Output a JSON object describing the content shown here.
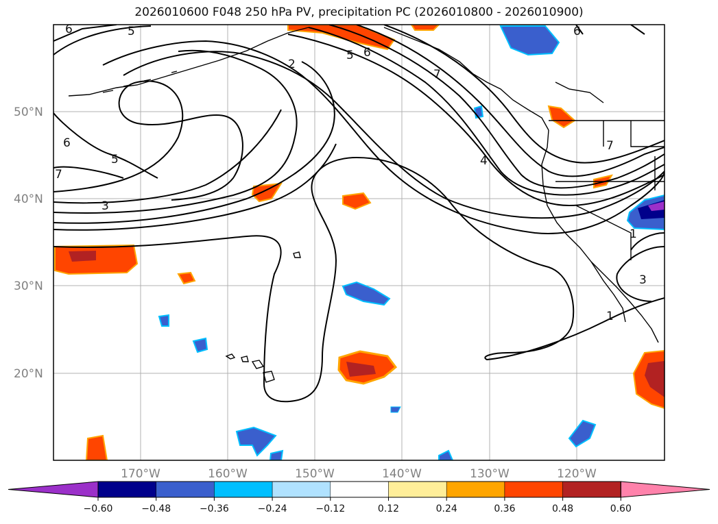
{
  "title": "2026010600 F048 250 hPa PV, precipitation PC (2026010800 - 2026010900)",
  "lat_labels": [
    "50°N",
    "40°N",
    "30°N",
    "20°N"
  ],
  "lon_labels": [
    "170°W",
    "160°W",
    "150°W",
    "140°W",
    "130°W",
    "120°W"
  ],
  "colorbar": {
    "colors": [
      "#9b30c9",
      "#00008b",
      "#3a5fcd",
      "#00bfff",
      "#b0e2ff",
      "#ffffff",
      "#ffee99",
      "#ffa500",
      "#ff4500",
      "#b22222",
      "#ff82ab"
    ],
    "tick_labels": [
      "−0.60",
      "−0.48",
      "−0.36",
      "−0.24",
      "−0.12",
      "0.12",
      "0.24",
      "0.36",
      "0.48",
      "0.60"
    ]
  },
  "contour_labels": [
    {
      "text": "6"
    },
    {
      "text": "5"
    },
    {
      "text": "2"
    },
    {
      "text": "5"
    },
    {
      "text": "6"
    },
    {
      "text": "7"
    },
    {
      "text": "6"
    },
    {
      "text": "6"
    },
    {
      "text": "5"
    },
    {
      "text": "7"
    },
    {
      "text": "3"
    },
    {
      "text": "4"
    },
    {
      "text": "7"
    },
    {
      "text": "1"
    },
    {
      "text": "3"
    },
    {
      "text": "1"
    }
  ]
}
